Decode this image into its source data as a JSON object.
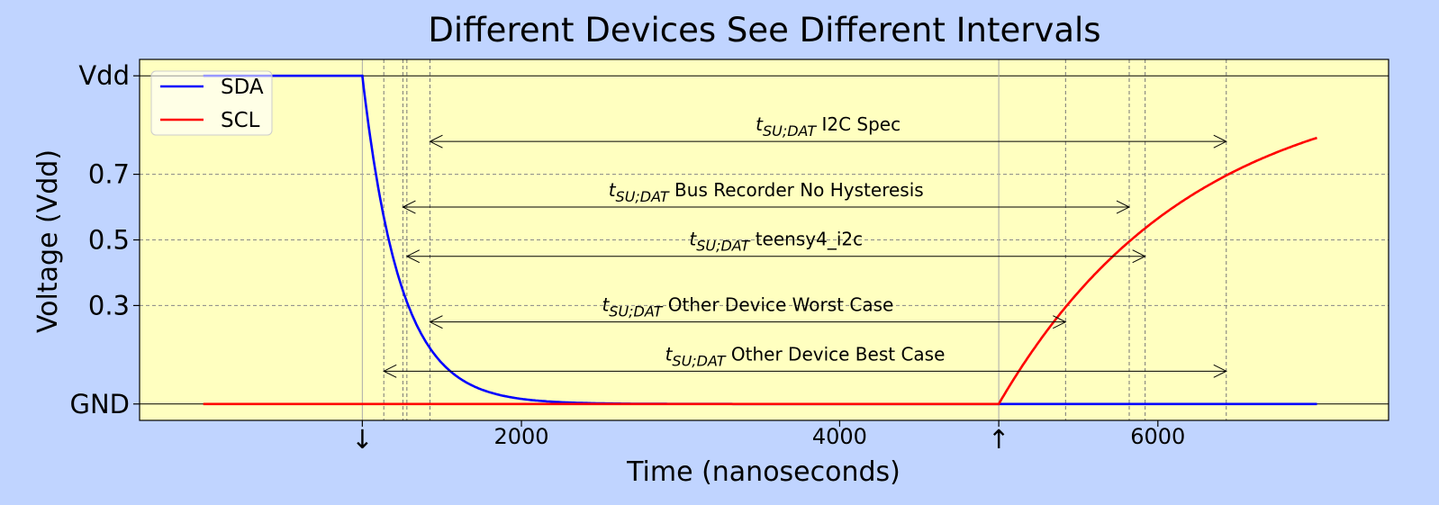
{
  "chart_data": {
    "type": "line",
    "title": "Different Devices See Different Intervals",
    "xlabel": "Time (nanoseconds)",
    "ylabel": "Voltage (Vdd)",
    "xlim": [
      -400,
      7450
    ],
    "ylim": [
      -0.05,
      1.05
    ],
    "x_ticks": [
      {
        "value": 2000,
        "label": "2000"
      },
      {
        "value": 4000,
        "label": "4000"
      },
      {
        "value": 6000,
        "label": "6000"
      }
    ],
    "x_marker_ticks": [
      {
        "value": 1000,
        "label": "↓"
      },
      {
        "value": 5000,
        "label": "↑"
      }
    ],
    "y_ticks": [
      {
        "value": 0,
        "label": "GND"
      },
      {
        "value": 0.3,
        "label": "0.3"
      },
      {
        "value": 0.5,
        "label": "0.5"
      },
      {
        "value": 0.7,
        "label": "0.7"
      },
      {
        "value": 1,
        "label": "Vdd"
      }
    ],
    "grid": "dashed at y ticks",
    "legend_position": "top-left",
    "colors": {
      "plot_bg": "#ffffc0",
      "figure_bg": "#c0d4ff",
      "sda": "#0000ff",
      "scl": "#ff0000"
    },
    "series": [
      {
        "name": "SDA",
        "color": "#0000ff",
        "start": 0,
        "stop": 7000,
        "value_high": 1,
        "fall_at": 1000,
        "tau_ns": 240
      },
      {
        "name": "SCL",
        "color": "#ff0000",
        "start": 0,
        "stop": 7000,
        "value_low": 0,
        "rise_at": 5000,
        "tau_ns": 1200
      }
    ],
    "vertical_lines": [
      {
        "x": 1000,
        "style": "solid"
      },
      {
        "x": 5000,
        "style": "solid"
      },
      {
        "x": 1135,
        "style": "dashed"
      },
      {
        "x": 1255,
        "style": "dashed"
      },
      {
        "x": 1280,
        "style": "dashed"
      },
      {
        "x": 1425,
        "style": "dashed"
      },
      {
        "x": 5420,
        "style": "dashed"
      },
      {
        "x": 5820,
        "style": "dashed"
      },
      {
        "x": 5920,
        "style": "dashed"
      },
      {
        "x": 6430,
        "style": "dashed"
      }
    ],
    "annotations": [
      {
        "symbol": "t",
        "subscript": "SU;DAT",
        "text": "I2C Spec",
        "x_start": 1425,
        "x_end": 6430,
        "y": 0.8
      },
      {
        "symbol": "t",
        "subscript": "SU;DAT",
        "text": "Bus Recorder No Hysteresis",
        "x_start": 1255,
        "x_end": 5820,
        "y": 0.6
      },
      {
        "symbol": "t",
        "subscript": "SU;DAT",
        "text": "teensy4_i2c",
        "x_start": 1280,
        "x_end": 5920,
        "y": 0.45
      },
      {
        "symbol": "t",
        "subscript": "SU;DAT",
        "text": "Other Device Worst Case",
        "x_start": 1425,
        "x_end": 5420,
        "y": 0.25
      },
      {
        "symbol": "t",
        "subscript": "SU;DAT",
        "text": "Other Device Best Case",
        "x_start": 1135,
        "x_end": 6430,
        "y": 0.1
      }
    ]
  }
}
